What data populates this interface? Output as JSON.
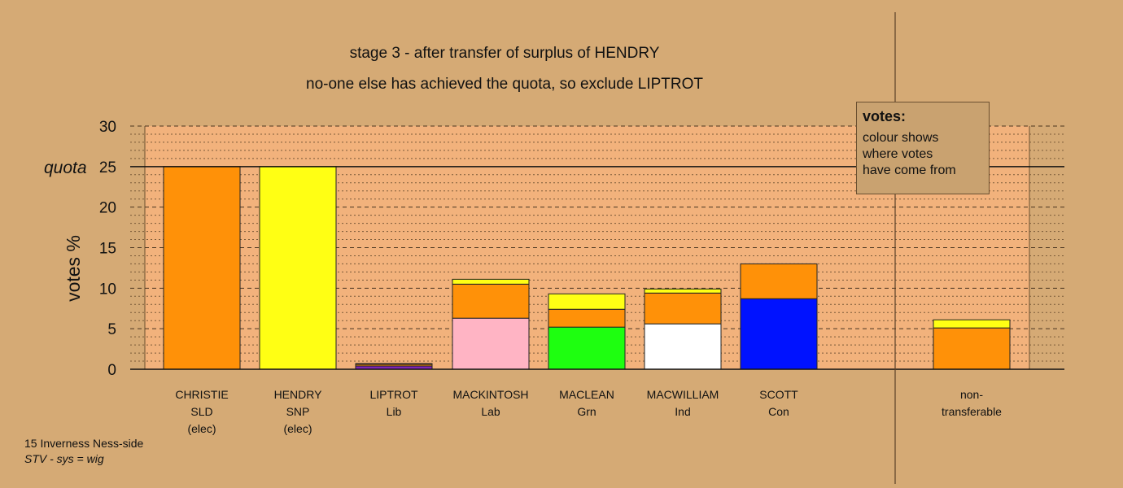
{
  "title_line1": "stage 3 - after transfer of surplus of HENDRY",
  "title_line2": "no-one else has achieved the quota, so exclude LIPTROT",
  "footer_line1": "15 Inverness Ness-side",
  "footer_line2": "STV - sys = wig",
  "legend": {
    "title": "votes:",
    "lines": [
      "colour shows",
      "where votes",
      "have come from"
    ]
  },
  "colors": {
    "background": "#d5aa75",
    "plot_area": "#f2b27c",
    "SLD": "#ff9108",
    "SNP": "#ffff14",
    "Lib": "#7e26b5",
    "Lab": "#ffb4c4",
    "Grn": "#1eff10",
    "Ind": "#ffffff",
    "Con": "#0012ff"
  },
  "chart_data": {
    "type": "bar",
    "stacked": true,
    "ylabel": "votes %",
    "ylim": [
      0,
      30
    ],
    "yticks": [
      0,
      5,
      10,
      15,
      20,
      25,
      30
    ],
    "quota": 25,
    "quota_label": "quota",
    "grid": "dotted minor lines every 1, dashed major lines every 5",
    "categories": [
      {
        "lines": [
          "CHRISTIE",
          "SLD",
          "(elec)"
        ]
      },
      {
        "lines": [
          "HENDRY",
          "SNP",
          "(elec)"
        ]
      },
      {
        "lines": [
          "LIPTROT",
          "Lib"
        ]
      },
      {
        "lines": [
          "MACKINTOSH",
          "Lab"
        ]
      },
      {
        "lines": [
          "MACLEAN",
          "Grn"
        ]
      },
      {
        "lines": [
          "MACWILLIAM",
          "Ind"
        ]
      },
      {
        "lines": [
          "SCOTT",
          "Con"
        ]
      },
      {
        "lines": [
          "non-",
          "transferable"
        ]
      }
    ],
    "segments": [
      [
        {
          "from": "SLD",
          "value": 25.0
        }
      ],
      [
        {
          "from": "SNP",
          "value": 25.0
        }
      ],
      [
        {
          "from": "Lib",
          "value": 0.4
        },
        {
          "from": "SLD",
          "value": 0.2
        },
        {
          "from": "SNP",
          "value": 0.1
        }
      ],
      [
        {
          "from": "Lab",
          "value": 6.3
        },
        {
          "from": "SLD",
          "value": 4.2
        },
        {
          "from": "SNP",
          "value": 0.6
        }
      ],
      [
        {
          "from": "Grn",
          "value": 5.2
        },
        {
          "from": "SLD",
          "value": 2.2
        },
        {
          "from": "SNP",
          "value": 1.9
        }
      ],
      [
        {
          "from": "Ind",
          "value": 5.6
        },
        {
          "from": "SLD",
          "value": 3.8
        },
        {
          "from": "SNP",
          "value": 0.5
        }
      ],
      [
        {
          "from": "Con",
          "value": 8.7
        },
        {
          "from": "SLD",
          "value": 4.3
        }
      ],
      [
        {
          "from": "SLD",
          "value": 5.1
        },
        {
          "from": "SNP",
          "value": 1.0
        }
      ]
    ]
  }
}
